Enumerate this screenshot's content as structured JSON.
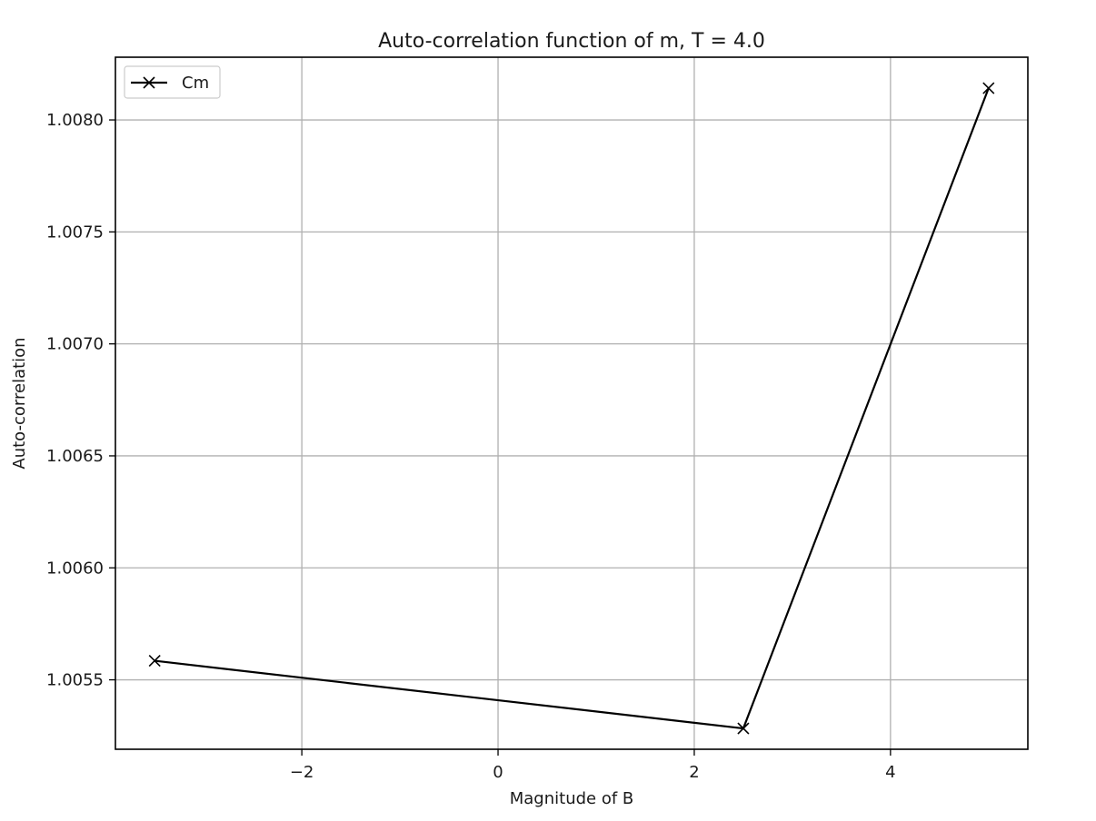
{
  "chart_data": {
    "type": "line",
    "title": "Auto-correlation function of m, T = 4.0",
    "xlabel": "Magnitude of B",
    "ylabel": "Auto-correlation",
    "xlim": [
      -3.9,
      5.4
    ],
    "ylim": [
      1.00519,
      1.00828
    ],
    "xticks": [
      -2,
      0,
      2,
      4
    ],
    "xtick_labels": [
      "−2",
      "0",
      "2",
      "4"
    ],
    "yticks": [
      1.0055,
      1.006,
      1.0065,
      1.007,
      1.0075,
      1.008
    ],
    "ytick_labels": [
      "1.0055",
      "1.0060",
      "1.0065",
      "1.0070",
      "1.0075",
      "1.0080"
    ],
    "grid": true,
    "legend_position": "upper left",
    "series": [
      {
        "name": "Cm",
        "color": "#000000",
        "marker": "x",
        "x": [
          -3.5,
          2.5,
          5.0
        ],
        "y": [
          1.005585,
          1.005283,
          1.008142
        ]
      }
    ]
  }
}
